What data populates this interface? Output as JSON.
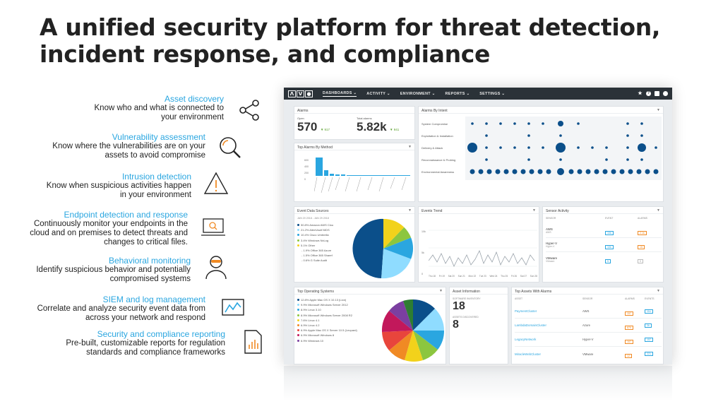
{
  "headline": {
    "line1": "A unified security platform for threat detection,",
    "line2": "incident response, and compliance"
  },
  "features": [
    {
      "title": "Asset discovery",
      "desc1": "Know who and what is connected to",
      "desc2": "your environment",
      "desc3": "",
      "icon": "share-network-icon"
    },
    {
      "title": "Vulnerability assessment",
      "desc1": "Know where the vulnerabilities are on your",
      "desc2": "assets to avoid compromise",
      "desc3": "",
      "icon": "magnifier-icon"
    },
    {
      "title": "Intrusion detection",
      "desc1": "Know when suspicious activities happen",
      "desc2": "in your environment",
      "desc3": "",
      "icon": "warning-triangle-icon"
    },
    {
      "title": "Endpoint detection and response",
      "desc1": "Continuously monitor your endpoints in the",
      "desc2": "cloud and on premises to detect threats and",
      "desc3": "changes to critical files.",
      "icon": "laptop-search-icon"
    },
    {
      "title": "Behavioral monitoring",
      "desc1": "Identify suspicious behavior and potentially",
      "desc2": "compromised systems",
      "desc3": "",
      "icon": "masked-user-icon"
    },
    {
      "title": "SIEM and log management",
      "desc1": "Correlate and analyze security event data from",
      "desc2": "across your network and respond",
      "desc3": "",
      "icon": "monitor-chart-icon"
    },
    {
      "title": "Security and compliance reporting",
      "desc1": "Pre-built, customizable reports for regulation",
      "desc2": "standards and compliance frameworks",
      "desc3": "",
      "icon": "report-document-icon"
    }
  ],
  "dashboard": {
    "nav": [
      "DASHBOARDS ⌄",
      "ACTIVITY ⌄",
      "ENVIRONMENT ⌄",
      "REPORTS ⌄",
      "SETTINGS ⌄"
    ],
    "alarms": {
      "title": "Alarms",
      "open_label": "Open",
      "open_value": "570",
      "open_delta": "▼ 917",
      "total_label": "Total alarms",
      "total_value": "5.82k",
      "total_delta": "▼ 941"
    },
    "by_intent": {
      "title": "Alarms By Intent",
      "rows": [
        "System Compromise",
        "Exploitation & Installation",
        "Delivery & Attack",
        "Reconnaissance & Probing",
        "Environmental Awareness"
      ]
    },
    "by_method": {
      "title": "Top Alarms By Method",
      "ylabels": [
        "600",
        "400",
        "200",
        "0"
      ]
    },
    "sources": {
      "title": "Event Data Sources",
      "daterange": "JAN 20 2018 - JAN 29 2018",
      "legend": [
        "50.8% Amazon AWS Clou",
        "21.2% AlienVault NIDS",
        "10.4% Cisco Umbrella",
        "3.4% Windows NxLog",
        "5.1% Other",
        "- 1.9% Office 365 Azure",
        "- 1.5% Office 365 Sharef",
        "- 0.6% G Suite Audit"
      ]
    },
    "trend": {
      "title": "Events Trend",
      "ylabels": [
        "10k",
        "5k",
        "0"
      ],
      "xlabels": [
        "Thu 18",
        "Fri 19",
        "Sat 20",
        "Sun 21",
        "Mon 22",
        "Tue 23",
        "Wed 24",
        "Thu 25",
        "Fri 26",
        "Sat 27",
        "Sun 28"
      ]
    },
    "sensor": {
      "title": "Sensor Activity",
      "cols": [
        "SENSOR",
        "EVENT",
        "ALARMS"
      ],
      "rows": [
        {
          "name": "AWS",
          "sub": "AWS",
          "ev": "10k",
          "al": "2.1k"
        },
        {
          "name": "Hyper-V",
          "sub": "Hyper-V",
          "ev": "10k",
          "al": "15"
        },
        {
          "name": "VMware",
          "sub": "VMware",
          "ev": "5",
          "al": "0"
        }
      ]
    },
    "os": {
      "title": "Top Operating Systems",
      "legend": [
        "12.8% Apple Mac OS X 10.13 (Lion)",
        "9.9% Microsoft Windows Server 2012",
        "8.9% Linux 3.10",
        "8.9% Microsoft Windows Server 2008 R2",
        "7.6% Linux 4.1",
        "6.9% Linux 4.2",
        "6.9% Apple Mac OS X Server 10.5 (Leopard)",
        "6.9% Microsoft Windows 8",
        "6.9% Windows 10"
      ]
    },
    "asset_info": {
      "title": "Asset Information",
      "sw_label": "SOFTWARE INVENTORY",
      "sw_value": "18",
      "vuln_label": "ASSETS DISCOVERED",
      "vuln_value": "8"
    },
    "top_assets": {
      "title": "Top Assets With Alarms",
      "cols": [
        "ASSET",
        "SENSOR",
        "ALARMS",
        "EVENTS"
      ],
      "rows": [
        {
          "name": "PaymentCluster",
          "sensor": "AWS",
          "al": "157",
          "ev": "11k"
        },
        {
          "name": "LambdaDomainCluster",
          "sensor": "Azure",
          "al": "879",
          "ev": "2k"
        },
        {
          "name": "LegacyNetwork",
          "sensor": "Hyper-V",
          "al": "167",
          "ev": "157"
        },
        {
          "name": "MiracleWebCluster",
          "sensor": "VMware",
          "al": "12",
          "ev": "221"
        }
      ]
    }
  }
}
